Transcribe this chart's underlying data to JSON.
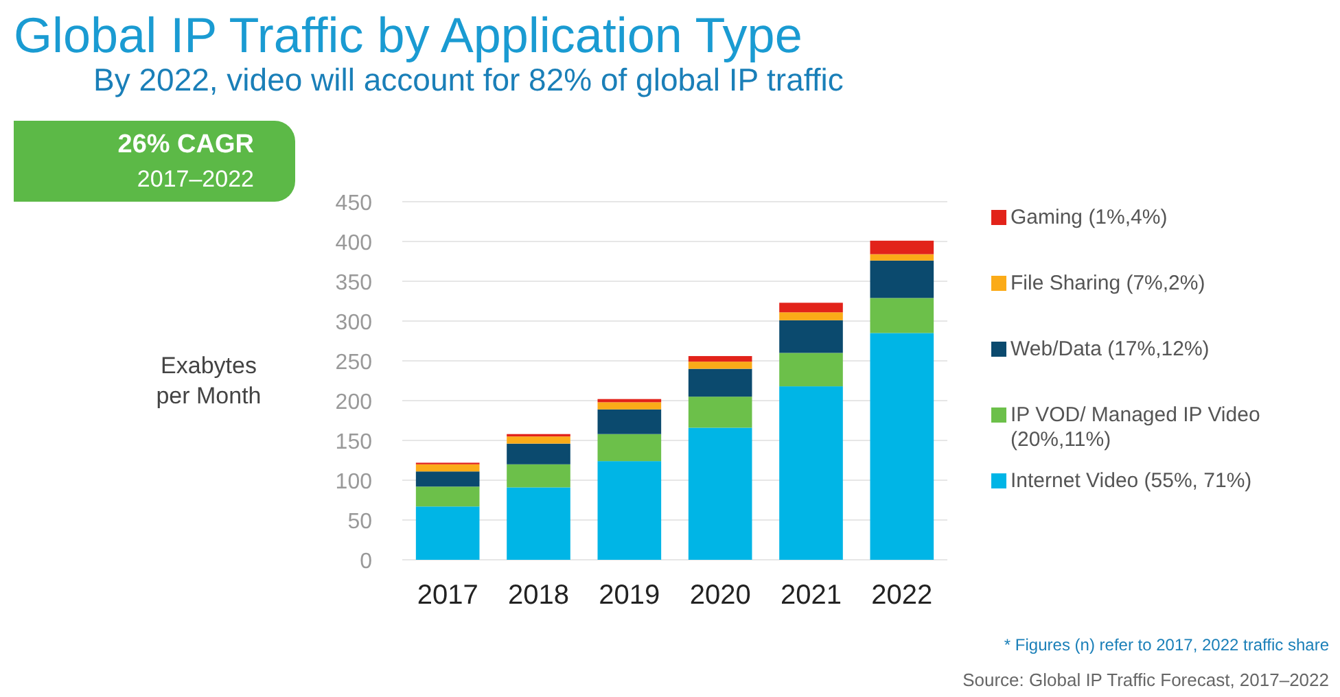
{
  "chart_data": {
    "type": "bar",
    "title": "Global IP Traffic by Application Type",
    "subtitle": "By 2022, video will account for 82% of global IP traffic",
    "ylabel": "Exabytes per Month",
    "categories": [
      "2017",
      "2018",
      "2019",
      "2020",
      "2021",
      "2022"
    ],
    "stacked": true,
    "series": [
      {
        "name": "Internet Video (55%, 71%)",
        "color": "#00b5e6",
        "values": [
          67,
          91,
          124,
          166,
          218,
          285
        ]
      },
      {
        "name": "IP VOD/ Managed IP Video (20%,11%)",
        "color": "#6cc04a",
        "values": [
          25,
          29,
          34,
          39,
          42,
          44
        ]
      },
      {
        "name": "Web/Data (17%,12%)",
        "color": "#0b4a6e",
        "values": [
          19,
          26,
          31,
          35,
          41,
          47
        ]
      },
      {
        "name": "File Sharing (7%,2%)",
        "color": "#fbab18",
        "values": [
          9,
          9,
          9,
          9,
          10,
          8
        ]
      },
      {
        "name": "Gaming (1%,4%)",
        "color": "#e2231a",
        "values": [
          2,
          3,
          4,
          7,
          12,
          17
        ]
      }
    ],
    "ylim": [
      0,
      450
    ],
    "yticks": [
      0,
      50,
      100,
      150,
      200,
      250,
      300,
      350,
      400,
      450
    ],
    "grid": "y",
    "legend": "right",
    "annotations": [
      "26% CAGR",
      "2017–2022",
      "* Figures (n) refer to 2017, 2022 traffic share",
      "Source: Global IP Traffic Forecast, 2017–2022"
    ]
  }
}
